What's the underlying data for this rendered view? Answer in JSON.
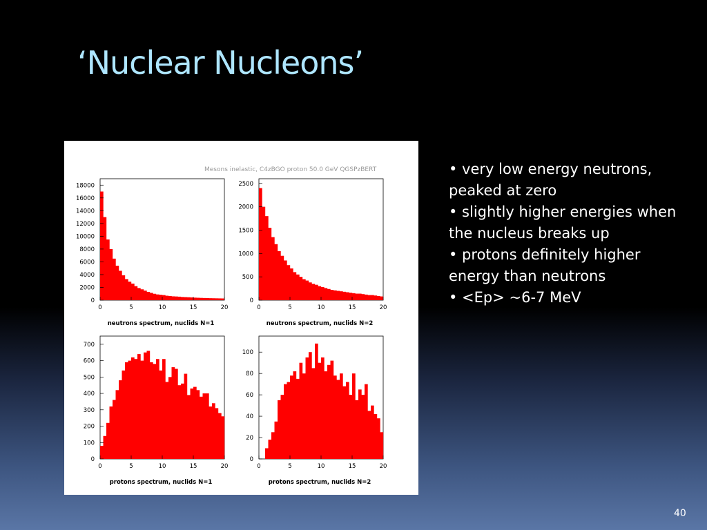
{
  "slide": {
    "title": "‘Nuclear Nucleons’",
    "page_number": "40",
    "bullets": [
      "• very low energy neutrons, peaked at zero",
      "• slightly higher energies when the nucleus breaks up",
      "• protons definitely higher energy than neutrons",
      "• <Ep> ~6-7 MeV"
    ]
  },
  "figure": {
    "title": "Mesons inelastic,  C4zBGO proton 50.0 GeV QGSPzBERT",
    "bar_color": "#ff0000"
  },
  "chart_data": [
    {
      "type": "bar",
      "xlabel": "neutrons spectrum, nuclids N=1",
      "xlim": [
        0,
        20
      ],
      "ylim": [
        0,
        19000
      ],
      "xticks": [
        0,
        5,
        10,
        15,
        20
      ],
      "yticks": [
        0,
        2000,
        4000,
        6000,
        8000,
        10000,
        12000,
        14000,
        16000,
        18000
      ],
      "bin_width": 0.5,
      "values": [
        17000,
        13000,
        9500,
        8000,
        6500,
        5400,
        4600,
        3900,
        3300,
        2900,
        2600,
        2200,
        1900,
        1700,
        1500,
        1300,
        1150,
        1000,
        900,
        850,
        800,
        700,
        650,
        600,
        580,
        550,
        500,
        480,
        460,
        430,
        400,
        380,
        360,
        340,
        330,
        310,
        300,
        290,
        280,
        270
      ]
    },
    {
      "type": "bar",
      "xlabel": "neutrons spectrum, nuclids N=2",
      "xlim": [
        0,
        20
      ],
      "ylim": [
        0,
        2600
      ],
      "xticks": [
        0,
        5,
        10,
        15,
        20
      ],
      "yticks": [
        0,
        500,
        1000,
        1500,
        2000,
        2500
      ],
      "bin_width": 0.5,
      "values": [
        2400,
        2000,
        1800,
        1550,
        1350,
        1200,
        1050,
        950,
        850,
        750,
        680,
        600,
        550,
        500,
        450,
        420,
        380,
        350,
        330,
        300,
        280,
        260,
        240,
        220,
        210,
        200,
        190,
        180,
        170,
        160,
        150,
        140,
        140,
        130,
        120,
        110,
        110,
        100,
        90,
        80
      ]
    },
    {
      "type": "bar",
      "xlabel": "protons spectrum, nuclids N=1",
      "xlim": [
        0,
        20
      ],
      "ylim": [
        0,
        750
      ],
      "xticks": [
        0,
        5,
        10,
        15,
        20
      ],
      "yticks": [
        0,
        100,
        200,
        300,
        400,
        500,
        600,
        700
      ],
      "bin_width": 0.5,
      "values": [
        80,
        140,
        220,
        320,
        360,
        420,
        480,
        540,
        590,
        600,
        620,
        610,
        640,
        600,
        650,
        660,
        590,
        580,
        610,
        540,
        610,
        470,
        500,
        560,
        550,
        450,
        460,
        520,
        390,
        430,
        440,
        420,
        380,
        400,
        400,
        320,
        340,
        310,
        280,
        260
      ]
    },
    {
      "type": "bar",
      "xlabel": "protons spectrum, nuclids N=2",
      "xlim": [
        0,
        20
      ],
      "ylim": [
        0,
        115
      ],
      "xticks": [
        0,
        5,
        10,
        15,
        20
      ],
      "yticks": [
        0,
        20,
        40,
        60,
        80,
        100
      ],
      "bin_width": 0.5,
      "values": [
        0,
        0,
        10,
        18,
        25,
        35,
        55,
        60,
        70,
        72,
        78,
        82,
        75,
        90,
        80,
        95,
        100,
        85,
        108,
        90,
        95,
        82,
        88,
        92,
        78,
        74,
        80,
        68,
        72,
        60,
        80,
        55,
        65,
        60,
        70,
        45,
        50,
        42,
        38,
        25
      ]
    }
  ]
}
